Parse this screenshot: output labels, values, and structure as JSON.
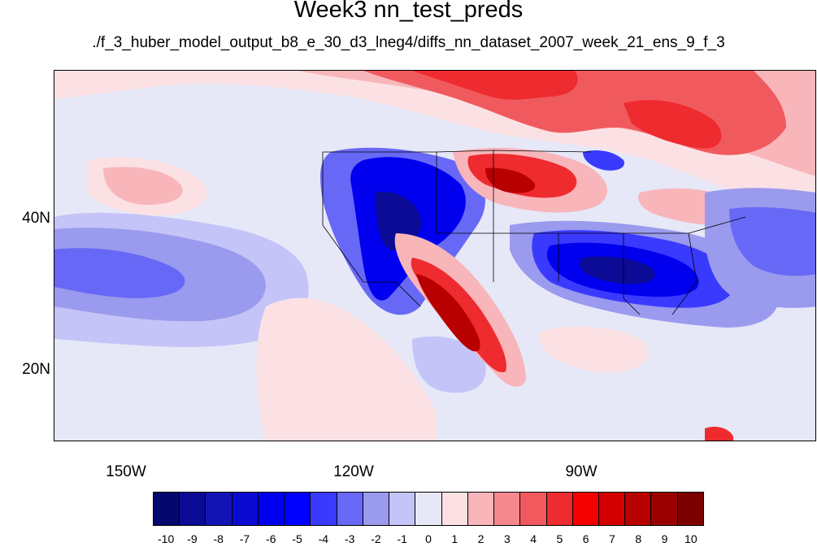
{
  "title": "Week3 nn_test_preds",
  "subtitle": "./f_3_huber_model_output_b8_e_30_d3_lneg4/diffs_nn_dataset_2007_week_21_ens_9_f_3",
  "x_ticks": [
    "150W",
    "120W",
    "90W"
  ],
  "y_ticks": [
    "40N",
    "20N"
  ],
  "colorbar": {
    "labels": [
      "-10",
      "-9",
      "-8",
      "-7",
      "-6",
      "-5",
      "-4",
      "-3",
      "-2",
      "-1",
      "0",
      "1",
      "2",
      "3",
      "4",
      "5",
      "6",
      "7",
      "8",
      "9",
      "10"
    ],
    "colors": [
      "#06066f",
      "#0b0b96",
      "#1414b4",
      "#0a0ad2",
      "#0000ee",
      "#0000ff",
      "#3a3aff",
      "#6868f6",
      "#9a9aee",
      "#c4c4f8",
      "#e6e8f8",
      "#fbe1e4",
      "#f8b6ba",
      "#f4888c",
      "#f05a5e",
      "#ee2b2f",
      "#f40000",
      "#d40000",
      "#b80000",
      "#9a0000",
      "#7c0000"
    ]
  },
  "palette": {
    "neutral": "#e6e8f8",
    "light_blue": "#c4c4f8",
    "mid_blue": "#9a9aee",
    "blue": "#3a3aff",
    "dark_blue": "#0000ee",
    "light_red": "#fbe1e4",
    "pink": "#f8b6ba",
    "red": "#ee2b2f",
    "dark_red": "#b80000",
    "deep_red": "#8c0000"
  }
}
